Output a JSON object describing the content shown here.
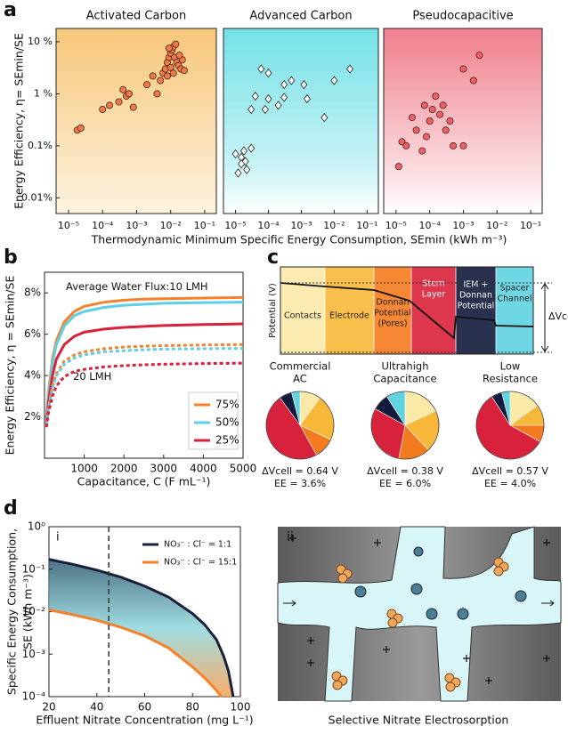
{
  "panel_labels": [
    "a",
    "b",
    "c",
    "d"
  ],
  "profile": {
    "ylabel": "Potential (V)",
    "delta_label": "ΔVcell",
    "regions": [
      {
        "label": [
          "Contacts"
        ],
        "color": "#fbe9a8"
      },
      {
        "label": [
          "Electrode"
        ],
        "color": "#f7b83a"
      },
      {
        "label": [
          "Donnan",
          "Potential",
          "(Pores)"
        ],
        "color": "#f47a1f"
      },
      {
        "label": [
          "Stern",
          "Layer"
        ],
        "color": "#d8213a"
      },
      {
        "label": [
          "IEM +",
          "Donnan",
          "Potential"
        ],
        "color": "#121b3c"
      },
      {
        "label": [
          "Spacer",
          "Channel"
        ],
        "color": "#5fd3e0"
      }
    ]
  },
  "schematic": {
    "label": "ii",
    "caption": "Selective Nitrate Electrosorption"
  },
  "chart_data": [
    {
      "type": "scatter",
      "title": "Activated Carbon",
      "marker": "circle",
      "color": "#f07a4a",
      "ylabel": "Energy Efficiency, η= SEmin/SE",
      "xlog": true,
      "ylog": true,
      "xlim": [
        4.3e-06,
        0.22
      ],
      "ylim": [
        0.005,
        18
      ],
      "xticks": [
        {
          "value": 1e-05,
          "label": "10⁻⁵"
        },
        {
          "value": 0.0001,
          "label": "10⁻⁴"
        },
        {
          "value": 0.001,
          "label": "10⁻³"
        },
        {
          "value": 0.01,
          "label": "10⁻²"
        },
        {
          "value": 0.1,
          "label": "10⁻¹"
        }
      ],
      "yticks": [
        {
          "value": 10,
          "label": "10 %"
        },
        {
          "value": 1,
          "label": "1 %"
        },
        {
          "value": 0.1,
          "label": "0.1%"
        },
        {
          "value": 0.01,
          "label": "0.01%"
        }
      ],
      "x": [
        1.8e-05,
        2.3e-05,
        0.0001,
        0.00016,
        0.0003,
        0.0005,
        0.0006,
        0.0008,
        0.0004,
        0.002,
        0.003,
        0.004,
        0.005,
        0.006,
        0.007,
        0.008,
        0.009,
        0.01,
        0.011,
        0.012,
        0.013,
        0.015,
        0.017,
        0.02,
        0.01,
        0.012,
        0.022,
        0.009,
        0.014,
        0.025,
        0.008,
        0.018
      ],
      "values": [
        0.2,
        0.22,
        0.5,
        0.6,
        0.7,
        0.9,
        1.0,
        0.55,
        1.2,
        1.5,
        2.2,
        1.0,
        1.8,
        2.5,
        3,
        4,
        5,
        6,
        7,
        8,
        5,
        4,
        3.5,
        3,
        3.2,
        2.5,
        4.5,
        7.5,
        9,
        2.8,
        2.2,
        5.5
      ]
    },
    {
      "type": "scatter",
      "title": "Advanced Carbon",
      "marker": "diamond",
      "color": "#ffffff",
      "xlabel": "Thermodynamic Minimum Specific Energy Consumption, SEmin (kWh m⁻³)",
      "xlog": true,
      "ylog": true,
      "xlim": [
        4.3e-06,
        0.22
      ],
      "ylim": [
        0.005,
        18
      ],
      "xticks": [
        {
          "value": 1e-05,
          "label": "10⁻⁵"
        },
        {
          "value": 0.0001,
          "label": "10⁻⁴"
        },
        {
          "value": 0.001,
          "label": "10⁻³"
        },
        {
          "value": 0.01,
          "label": "10⁻²"
        },
        {
          "value": 0.1,
          "label": "10⁻¹"
        }
      ],
      "x": [
        1.2e-05,
        1.5e-05,
        2e-05,
        1.8e-05,
        1e-05,
        3e-05,
        1.5e-05,
        2.2e-05,
        0.0001,
        0.0003,
        0.0005,
        0.0002,
        8e-05,
        4e-05,
        6e-05,
        0.0001,
        3e-05,
        0.0012,
        0.0015,
        0.01,
        0.03,
        0.005,
        0.0003
      ],
      "values": [
        0.03,
        0.06,
        0.05,
        0.08,
        0.07,
        0.09,
        0.045,
        0.035,
        0.8,
        1.5,
        1.8,
        0.6,
        0.5,
        0.9,
        3,
        2.5,
        0.5,
        1.5,
        0.8,
        1.8,
        3,
        0.35,
        0.85
      ]
    },
    {
      "type": "scatter",
      "title": "Pseudocapacitive",
      "marker": "circle",
      "color": "#f0606b",
      "xlog": true,
      "ylog": true,
      "xlim": [
        4.3e-06,
        0.22
      ],
      "ylim": [
        0.005,
        18
      ],
      "xticks": [
        {
          "value": 1e-05,
          "label": "10⁻⁵"
        },
        {
          "value": 0.0001,
          "label": "10⁻⁴"
        },
        {
          "value": 0.001,
          "label": "10⁻³"
        },
        {
          "value": 0.01,
          "label": "10⁻²"
        },
        {
          "value": 0.1,
          "label": "10⁻¹"
        }
      ],
      "x": [
        1.2e-05,
        1.5e-05,
        2e-05,
        3e-05,
        4e-05,
        6e-05,
        8e-05,
        0.0001,
        0.00012,
        0.00015,
        0.0002,
        0.0003,
        0.0005,
        0.00025,
        0.001,
        0.002,
        0.003,
        0.0004,
        0.001,
        7e-05
      ],
      "values": [
        0.04,
        0.12,
        0.1,
        0.35,
        0.2,
        0.08,
        0.15,
        0.3,
        0.5,
        0.9,
        0.4,
        0.2,
        0.1,
        0.6,
        3,
        1.8,
        5.5,
        0.3,
        0.1,
        0.6
      ]
    },
    {
      "type": "line",
      "ylabel": "Energy Efficiency, η = SEmin/SE",
      "xlabel": "Capacitance, C (F mL⁻¹)",
      "xlim": [
        0,
        5000
      ],
      "ylim": [
        0,
        9
      ],
      "xticks": [
        1000,
        2000,
        3000,
        4000,
        5000
      ],
      "yticks": [
        {
          "value": 2,
          "label": "2%"
        },
        {
          "value": 4,
          "label": "4%"
        },
        {
          "value": 6,
          "label": "6%"
        },
        {
          "value": 8,
          "label": "8%"
        }
      ],
      "legend": "lower right",
      "legend_frame": true,
      "annotations": [
        "Average Water Flux:10 LMH",
        "20 LMH"
      ],
      "x": [
        50,
        100,
        200,
        300,
        500,
        750,
        1000,
        1500,
        2000,
        2500,
        3000,
        4000,
        5000
      ],
      "series": [
        {
          "name": "75%",
          "color": "#f5822a",
          "values": [
            2.0,
            3.2,
            4.8,
            5.7,
            6.6,
            7.1,
            7.35,
            7.55,
            7.65,
            7.7,
            7.72,
            7.75,
            7.78
          ]
        },
        {
          "name": "50%",
          "color": "#5ecfe6",
          "values": [
            1.9,
            3.0,
            4.6,
            5.5,
            6.4,
            6.9,
            7.1,
            7.3,
            7.4,
            7.45,
            7.5,
            7.53,
            7.55
          ]
        },
        {
          "name": "25%",
          "color": "#d8213a",
          "values": [
            1.7,
            2.7,
            4.0,
            4.8,
            5.5,
            5.9,
            6.1,
            6.25,
            6.33,
            6.38,
            6.42,
            6.47,
            6.5
          ]
        }
      ],
      "dashed_series": [
        {
          "color": "#f5822a",
          "values": [
            1.7,
            2.5,
            3.5,
            4.1,
            4.7,
            5.0,
            5.15,
            5.3,
            5.38,
            5.42,
            5.45,
            5.48,
            5.5
          ]
        },
        {
          "color": "#5ecfe6",
          "values": [
            1.6,
            2.4,
            3.4,
            4.0,
            4.55,
            4.85,
            5.0,
            5.15,
            5.2,
            5.25,
            5.28,
            5.3,
            5.32
          ]
        },
        {
          "color": "#d8213a",
          "values": [
            1.5,
            2.2,
            3.0,
            3.5,
            3.95,
            4.2,
            4.3,
            4.42,
            4.48,
            4.52,
            4.55,
            4.58,
            4.6
          ]
        }
      ]
    },
    {
      "type": "pie",
      "title": [
        "Commercial",
        "AC"
      ],
      "values": [
        10,
        22,
        10,
        48,
        6,
        4
      ],
      "delta_label": "ΔVcell = 0.64 V",
      "ee_label": "EE = 3.6%"
    },
    {
      "type": "pie",
      "title": [
        "Ultrahigh",
        "Capacitance"
      ],
      "values": [
        18,
        20,
        15,
        30,
        8,
        9
      ],
      "delta_label": "ΔVcell = 0.38 V",
      "ee_label": "EE = 6.0%"
    },
    {
      "type": "pie",
      "title": [
        "Low",
        "Resistance"
      ],
      "values": [
        15,
        10,
        8,
        58,
        5,
        4
      ],
      "delta_label": "ΔVcell = 0.57 V",
      "ee_label": "EE = 4.0%"
    },
    {
      "type": "line",
      "panel_label": "i",
      "ylabel": [
        "Specific Energy Consumption,",
        "SE (kWh m⁻³)"
      ],
      "xlabel": "Effluent Nitrate Concentration (mg L⁻¹)",
      "ylog": true,
      "xlim": [
        20,
        100
      ],
      "ylim": [
        0.0001,
        1
      ],
      "xticks": [
        20,
        40,
        60,
        80,
        100
      ],
      "yticks": [
        {
          "value": 0.0001,
          "label": "10⁻⁴"
        },
        {
          "value": 0.001,
          "label": "10⁻³"
        },
        {
          "value": 0.01,
          "label": "10⁻²"
        },
        {
          "value": 0.1,
          "label": "10⁻¹"
        },
        {
          "value": 1,
          "label": "10⁰"
        }
      ],
      "vline": 45,
      "legend": "upper right",
      "fill_between": true,
      "series": [
        {
          "name": "NO₃⁻ : Cl⁻ = 1:1",
          "color": "#1b1f3a",
          "x": [
            20,
            30,
            40,
            50,
            60,
            70,
            80,
            85,
            90,
            93,
            95,
            97
          ],
          "values": [
            0.17,
            0.13,
            0.095,
            0.065,
            0.04,
            0.022,
            0.009,
            0.005,
            0.0022,
            0.0009,
            0.0004,
            0.0001
          ]
        },
        {
          "name": "NO₃⁻ : Cl⁻ = 15:1",
          "color": "#f5822a",
          "x": [
            20,
            30,
            40,
            50,
            60,
            70,
            80,
            85,
            90,
            92
          ],
          "values": [
            0.011,
            0.0085,
            0.0063,
            0.0043,
            0.0027,
            0.0014,
            0.0005,
            0.00028,
            0.00014,
            0.0001
          ]
        }
      ]
    }
  ]
}
